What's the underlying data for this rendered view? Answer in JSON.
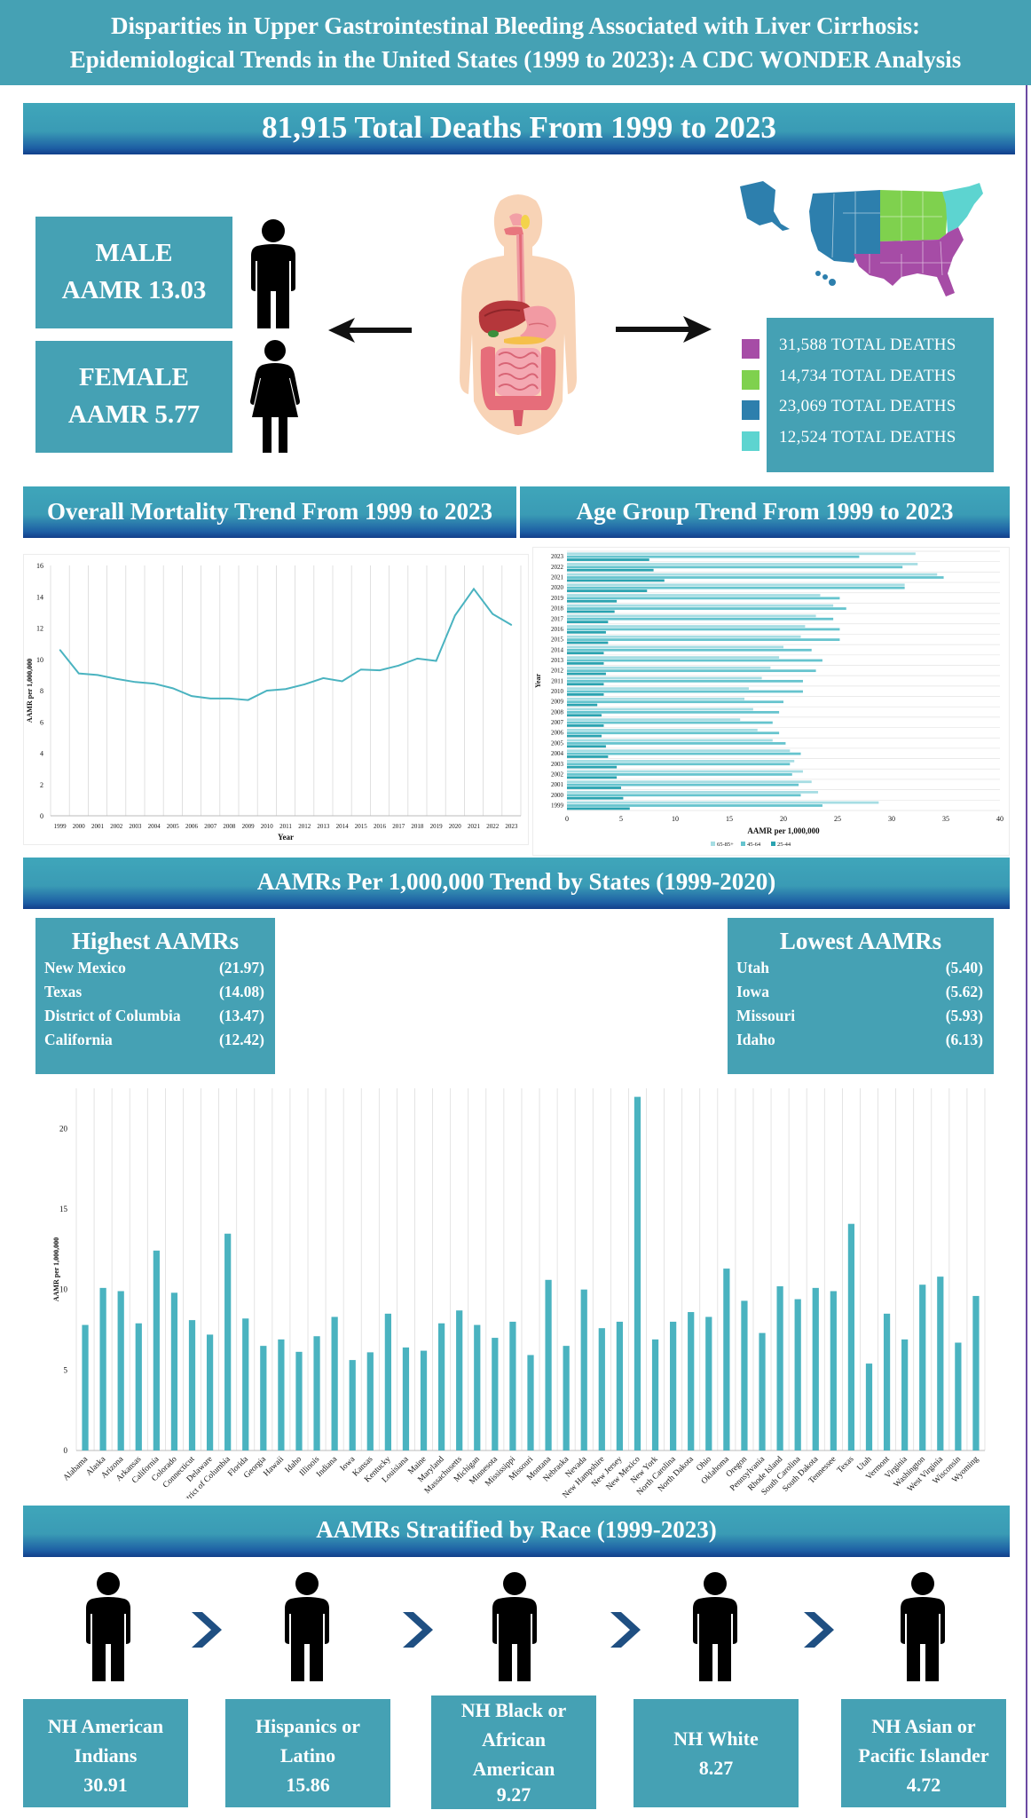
{
  "header": {
    "line1": "Disparities in Upper Gastrointestinal Bleeding Associated with Liver Cirrhosis:",
    "line2": "Epidemiological Trends in the United States (1999 to 2023): A CDC WONDER Analysis"
  },
  "total_banner": "81,915 Total Deaths From 1999 to 2023",
  "sex": {
    "male_label": "MALE",
    "male_value": "AAMR 13.03",
    "female_label": "FEMALE",
    "female_value": "AAMR 5.77"
  },
  "regions": [
    {
      "text": "31,588 TOTAL DEATHS",
      "color": "#a64ca6"
    },
    {
      "text": "14,734 TOTAL DEATHS",
      "color": "#7fd14e"
    },
    {
      "text": "23,069 TOTAL DEATHS",
      "color": "#2d7fad"
    },
    {
      "text": "12,524 TOTAL DEATHS",
      "color": "#5dd4d0"
    }
  ],
  "section_titles": {
    "overall": "Overall Mortality Trend From 1999 to 2023",
    "age": "Age Group Trend From 1999 to 2023",
    "states": "AAMRs Per 1,000,000 Trend by States (1999-2020)",
    "race": "AAMRs Stratified by Race (1999-2023)"
  },
  "highest": {
    "title": "Highest AAMRs",
    "items": [
      {
        "name": "New Mexico",
        "value": "(21.97)"
      },
      {
        "name": "Texas",
        "value": "(14.08)"
      },
      {
        "name": "District of Columbia",
        "value": "(13.47)"
      },
      {
        "name": "California",
        "value": "(12.42)"
      }
    ]
  },
  "lowest": {
    "title": "Lowest AAMRs",
    "items": [
      {
        "name": "Utah",
        "value": "(5.40)"
      },
      {
        "name": "Iowa",
        "value": "(5.62)"
      },
      {
        "name": "Missouri",
        "value": "(5.93)"
      },
      {
        "name": "Idaho",
        "value": "(6.13)"
      }
    ]
  },
  "race": [
    {
      "line1": "NH American",
      "line2": "Indians",
      "line3": "30.91"
    },
    {
      "line1": "Hispanics or",
      "line2": "Latino",
      "line3": "15.86"
    },
    {
      "line1": "NH Black or",
      "line2": "African",
      "line3": "American",
      "line4": "9.27"
    },
    {
      "line1": "NH White",
      "line2": "8.27"
    },
    {
      "line1": "NH Asian or",
      "line2": "Pacific Islander",
      "line3": "4.72"
    }
  ],
  "chart_data": [
    {
      "type": "line",
      "xlabel": "Year",
      "ylabel": "AAMR per 1,000,000",
      "ylim": [
        0,
        16
      ],
      "yticks": [
        0,
        2,
        4,
        6,
        8,
        10,
        12,
        14,
        16
      ],
      "grid": "vertical",
      "x": [
        "1999",
        "2000",
        "2001",
        "2002",
        "2003",
        "2004",
        "2005",
        "2006",
        "2007",
        "2008",
        "2009",
        "2010",
        "2011",
        "2012",
        "2013",
        "2014",
        "2015",
        "2016",
        "2017",
        "2018",
        "2019",
        "2020",
        "2021",
        "2022",
        "2023"
      ],
      "values": [
        10.6,
        9.1,
        9.0,
        8.75,
        8.55,
        8.45,
        8.15,
        7.65,
        7.5,
        7.5,
        7.4,
        8.0,
        8.1,
        8.4,
        8.8,
        8.6,
        9.35,
        9.3,
        9.6,
        10.05,
        9.9,
        12.8,
        14.5,
        12.9,
        12.2
      ],
      "color": "#4ab3c0"
    },
    {
      "type": "bar",
      "orientation": "horizontal",
      "xlabel": "AAMR per 1,000,000",
      "ylabel": "Year",
      "xlim": [
        0,
        40
      ],
      "xticks": [
        0,
        5,
        10,
        15,
        20,
        25,
        30,
        35,
        40
      ],
      "categories": [
        "1999",
        "2000",
        "2001",
        "2002",
        "2003",
        "2004",
        "2005",
        "2006",
        "2007",
        "2008",
        "2009",
        "2010",
        "2011",
        "2012",
        "2013",
        "2014",
        "2015",
        "2016",
        "2017",
        "2018",
        "2019",
        "2020",
        "2021",
        "2022",
        "2023"
      ],
      "series": [
        {
          "name": "65-85+",
          "color": "#a6dde3",
          "values": [
            28.8,
            23.2,
            22.6,
            21.8,
            21.0,
            20.6,
            19.0,
            17.6,
            16.0,
            17.2,
            16.4,
            16.8,
            18.0,
            18.8,
            19.6,
            20.0,
            21.6,
            22.0,
            23.0,
            24.6,
            23.4,
            31.2,
            34.2,
            32.4,
            32.2
          ]
        },
        {
          "name": "45-64",
          "color": "#66c4ce",
          "values": [
            23.6,
            21.6,
            21.4,
            20.8,
            20.6,
            21.6,
            20.2,
            19.6,
            19.0,
            19.6,
            20.0,
            21.8,
            21.8,
            23.0,
            23.6,
            22.6,
            25.2,
            25.2,
            24.6,
            25.8,
            25.2,
            31.2,
            34.8,
            31.0,
            27.0
          ]
        },
        {
          "name": "25-44",
          "color": "#2aa3b0",
          "values": [
            5.8,
            5.2,
            5.0,
            4.6,
            4.6,
            3.8,
            3.6,
            3.2,
            3.4,
            3.2,
            2.8,
            3.4,
            3.4,
            3.6,
            3.4,
            3.4,
            3.8,
            3.6,
            3.8,
            4.4,
            4.6,
            7.4,
            9.0,
            8.0,
            7.6
          ]
        }
      ]
    },
    {
      "type": "bar",
      "ylabel": "AAMR per 1,000,000",
      "ylim": [
        0,
        22.5
      ],
      "yticks": [
        0,
        5,
        10,
        15,
        20
      ],
      "color": "#4ab3c0",
      "categories": [
        "Alabama",
        "Alaska",
        "Arizona",
        "Arkansas",
        "California",
        "Colorado",
        "Connecticut",
        "Delaware",
        "District of Columbia",
        "Florida",
        "Georgia",
        "Hawaii",
        "Idaho",
        "Illinois",
        "Indiana",
        "Iowa",
        "Kansas",
        "Kentucky",
        "Louisiana",
        "Maine",
        "Maryland",
        "Massachusetts",
        "Michigan",
        "Minnesota",
        "Mississippi",
        "Missouri",
        "Montana",
        "Nebraska",
        "Nevada",
        "New Hampshire",
        "New Jersey",
        "New Mexico",
        "New York",
        "North Carolina",
        "North Dakota",
        "Ohio",
        "Oklahoma",
        "Oregon",
        "Pennsylvania",
        "Rhode Island",
        "South Carolina",
        "South Dakota",
        "Tennessee",
        "Texas",
        "Utah",
        "Vermont",
        "Virginia",
        "Washington",
        "West Virginia",
        "Wisconsin",
        "Wyoming"
      ],
      "values": [
        7.8,
        10.1,
        9.9,
        7.9,
        12.42,
        9.8,
        8.1,
        7.2,
        13.47,
        8.2,
        6.5,
        6.9,
        6.13,
        7.1,
        8.3,
        5.62,
        6.1,
        8.5,
        6.4,
        6.2,
        7.9,
        8.7,
        7.8,
        7.0,
        8.0,
        5.93,
        10.6,
        6.5,
        10.0,
        7.6,
        8.0,
        21.97,
        6.9,
        8.0,
        8.6,
        8.3,
        11.3,
        9.3,
        7.3,
        10.2,
        9.4,
        10.1,
        9.9,
        14.08,
        5.4,
        8.5,
        6.9,
        10.3,
        10.8,
        6.7,
        9.6
      ]
    }
  ]
}
